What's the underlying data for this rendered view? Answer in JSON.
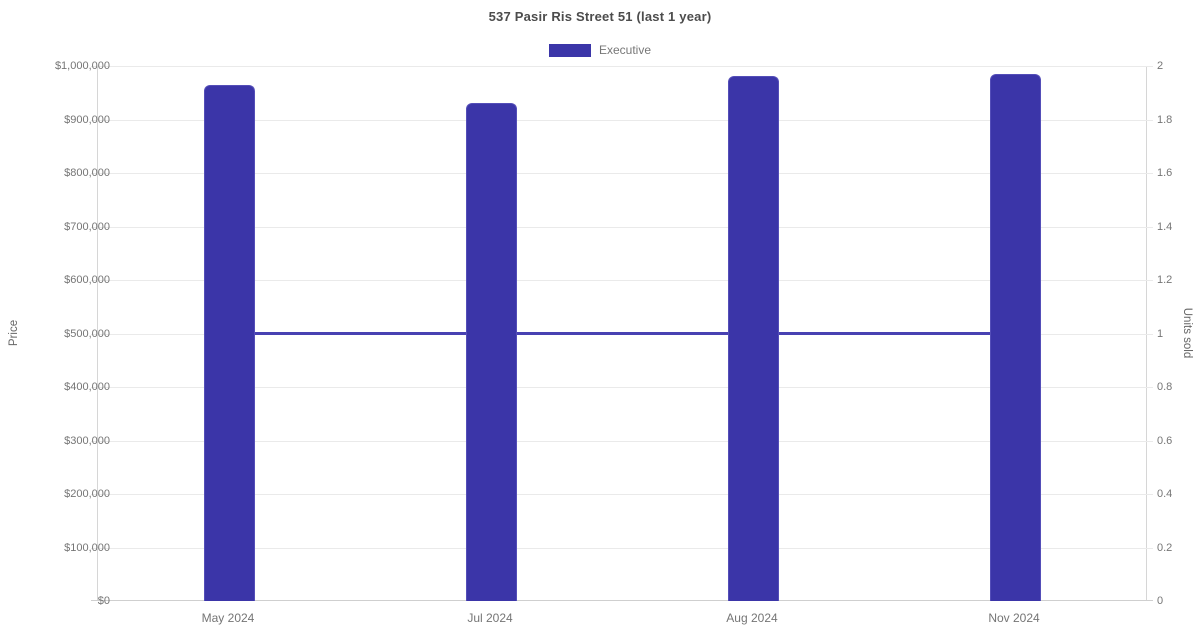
{
  "page": {
    "background_color": "#ffffff"
  },
  "header": {
    "title": "537 Pasir Ris Street 51 (last 1 year)"
  },
  "legend": {
    "items": [
      {
        "label": "Executive",
        "color": "#3b35a8"
      }
    ]
  },
  "chart_data": {
    "type": "bar",
    "title": "537 Pasir Ris Street 51 (last 1 year)",
    "categories": [
      "May 2024",
      "Jul 2024",
      "Aug 2024",
      "Nov 2024"
    ],
    "series": [
      {
        "name": "Executive",
        "type": "bar",
        "yaxis": "left",
        "color": "#3b35a8",
        "values": [
          965000,
          930000,
          982000,
          985000
        ]
      },
      {
        "name": "Units sold",
        "type": "line",
        "yaxis": "right",
        "color": "#4841b2",
        "values": [
          1,
          1,
          1,
          1
        ]
      }
    ],
    "axes": {
      "left": {
        "label": "Price",
        "min": 0,
        "max": 1000000,
        "step": 100000,
        "tick_labels_top_to_bottom": [
          "$1,000,000",
          "$900,000",
          "$800,000",
          "$700,000",
          "$600,000",
          "$500,000",
          "$400,000",
          "$300,000",
          "$200,000",
          "$100,000",
          "$0"
        ]
      },
      "right": {
        "label": "Units sold",
        "min": 0,
        "max": 2,
        "step": 0.2,
        "tick_labels_top_to_bottom": [
          "2",
          "1.8",
          "1.6",
          "1.4",
          "1.2",
          "1",
          "0.8",
          "0.6",
          "0.4",
          "0.2",
          "0"
        ]
      }
    },
    "grid": true,
    "legend_position": "top"
  }
}
